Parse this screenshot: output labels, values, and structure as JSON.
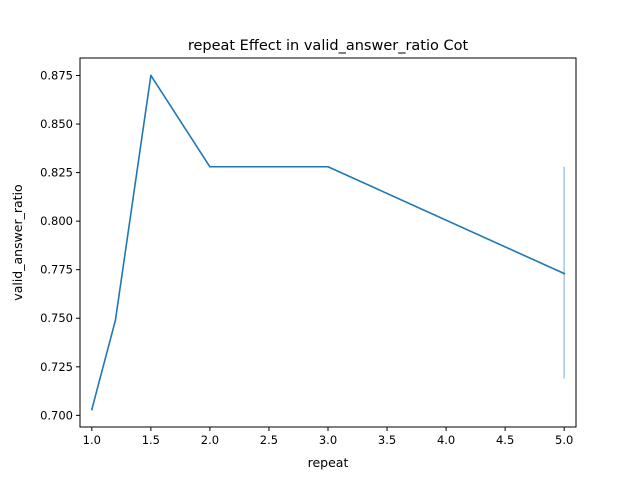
{
  "chart_data": {
    "type": "line",
    "title": "repeat Effect in valid_answer_ratio Cot",
    "xlabel": "repeat",
    "ylabel": "valid_answer_ratio",
    "x": [
      1.0,
      1.2,
      1.5,
      2.0,
      3.0,
      5.0
    ],
    "series": [
      {
        "values": [
          0.703,
          0.749,
          0.875,
          0.828,
          0.828,
          0.773
        ],
        "color": "#1f77b4"
      }
    ],
    "error_band": {
      "x": 5.0,
      "low": 0.719,
      "high": 0.828,
      "color": "#a6c8e3"
    },
    "xlim": [
      0.9,
      5.1
    ],
    "ylim": [
      0.694,
      0.884
    ],
    "xticks": [
      "1.0",
      "1.5",
      "2.0",
      "2.5",
      "3.0",
      "3.5",
      "4.0",
      "4.5",
      "5.0"
    ],
    "yticks": [
      "0.700",
      "0.725",
      "0.750",
      "0.775",
      "0.800",
      "0.825",
      "0.850",
      "0.875"
    ],
    "grid": false,
    "legend": false
  }
}
